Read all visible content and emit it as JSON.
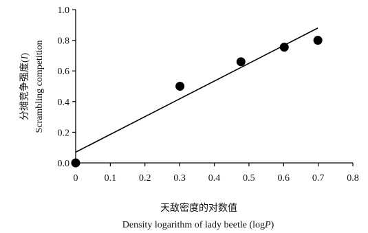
{
  "chart_data": {
    "type": "scatter",
    "xlabel_cn": "天敌密度的对数值",
    "xlabel_en": "Density logarithm of lady beetle (log",
    "xlabel_en_var": "P",
    "xlabel_en_end": ")",
    "ylabel_cn": "分摊竞争强度(",
    "ylabel_cn_var": "I",
    "ylabel_cn_end": ")",
    "ylabel_en": "Scrambling competition",
    "xlim": [
      0,
      0.8
    ],
    "ylim": [
      0,
      1.0
    ],
    "x_ticks": [
      "0",
      "0.1",
      "0.2",
      "0.3",
      "0.4",
      "0.5",
      "0.6",
      "0.7",
      "0.8"
    ],
    "y_ticks": [
      "0.0",
      "0.2",
      "0.4",
      "0.6",
      "0.8",
      "1.0"
    ],
    "x_tick_values": [
      0,
      0.1,
      0.2,
      0.3,
      0.4,
      0.5,
      0.6,
      0.7,
      0.8
    ],
    "y_tick_values": [
      0,
      0.2,
      0.4,
      0.6,
      0.8,
      1.0
    ],
    "series": [
      {
        "points": [
          {
            "x": 0.0,
            "y": 0.0
          },
          {
            "x": 0.301,
            "y": 0.5
          },
          {
            "x": 0.477,
            "y": 0.66
          },
          {
            "x": 0.602,
            "y": 0.755
          },
          {
            "x": 0.699,
            "y": 0.8
          }
        ]
      }
    ],
    "trendline": {
      "x": [
        0.0,
        0.699
      ],
      "y": [
        0.07,
        0.88
      ]
    },
    "grid": false,
    "legend": "none",
    "colors": {
      "marker": "#000000",
      "line": "#000000",
      "axis": "#000000"
    }
  }
}
